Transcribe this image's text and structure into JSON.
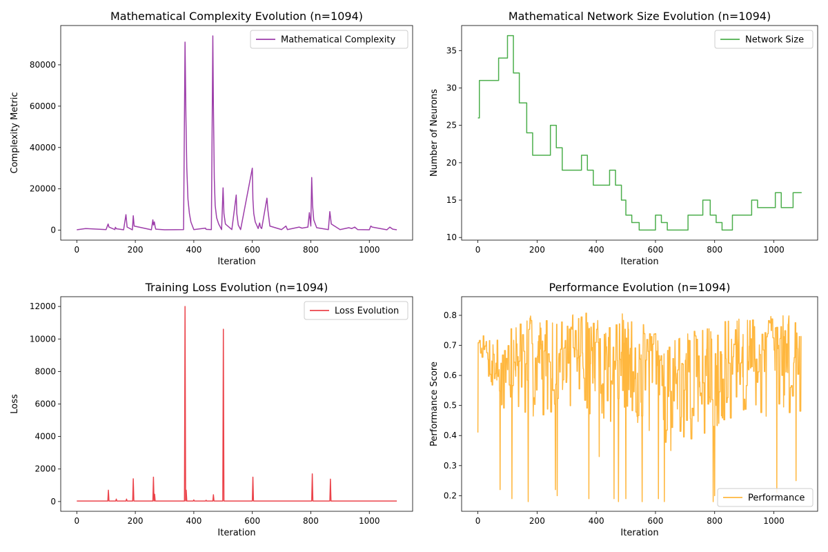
{
  "figure": {
    "background": "#ffffff"
  },
  "chart_data": [
    {
      "type": "line",
      "title": "Mathematical Complexity Evolution (n=1094)",
      "xlabel": "Iteration",
      "ylabel": "Complexity Metric",
      "xlim": [
        -55,
        1148
      ],
      "ylim": [
        -4800,
        99000
      ],
      "xticks": [
        0,
        200,
        400,
        600,
        800,
        1000
      ],
      "yticks": [
        0,
        20000,
        40000,
        60000,
        80000
      ],
      "legend": "top-right",
      "grid": false,
      "series": [
        {
          "name": "Mathematical Complexity",
          "color": "#8b1a9a",
          "x": [
            0,
            30,
            100,
            107,
            110,
            130,
            132,
            135,
            160,
            168,
            172,
            190,
            193,
            196,
            255,
            260,
            262,
            265,
            268,
            270,
            300,
            365,
            370,
            373,
            376,
            380,
            385,
            390,
            400,
            440,
            442,
            460,
            465,
            467,
            470,
            473,
            478,
            485,
            495,
            500,
            503,
            508,
            530,
            545,
            547,
            552,
            560,
            600,
            602,
            605,
            610,
            620,
            625,
            628,
            632,
            650,
            653,
            660,
            700,
            715,
            720,
            760,
            770,
            790,
            795,
            800,
            803,
            806,
            810,
            820,
            860,
            865,
            870,
            900,
            930,
            940,
            950,
            960,
            1000,
            1005,
            1010,
            1060,
            1070,
            1080,
            1094
          ],
          "values": [
            200,
            800,
            300,
            3000,
            1500,
            300,
            1400,
            700,
            200,
            7500,
            1500,
            200,
            7000,
            2000,
            200,
            5000,
            2500,
            4000,
            1500,
            500,
            200,
            300,
            91000,
            55000,
            30000,
            15000,
            8000,
            4000,
            300,
            1000,
            400,
            300,
            94000,
            60000,
            25000,
            12000,
            6000,
            3000,
            300,
            20500,
            8000,
            3000,
            300,
            17000,
            8000,
            2500,
            300,
            30000,
            15000,
            8000,
            4000,
            800,
            3500,
            1500,
            800,
            15500,
            10000,
            2000,
            300,
            2000,
            300,
            1500,
            1000,
            1500,
            8500,
            2000,
            25500,
            12000,
            5000,
            1200,
            300,
            9000,
            3000,
            300,
            1200,
            800,
            1500,
            300,
            200,
            2000,
            1500,
            200,
            1500,
            500,
            200
          ]
        }
      ]
    },
    {
      "type": "line",
      "title": "Mathematical Network Size Evolution (n=1094)",
      "xlabel": "Iteration",
      "ylabel": "Number of Neurons",
      "xlim": [
        -55,
        1148
      ],
      "ylim": [
        9.65,
        38.35
      ],
      "xticks": [
        0,
        200,
        400,
        600,
        800,
        1000
      ],
      "yticks": [
        10,
        15,
        20,
        25,
        30,
        35
      ],
      "legend": "top-right",
      "grid": false,
      "series": [
        {
          "name": "Network Size",
          "color": "#2ca02c",
          "x": [
            0,
            5,
            5,
            70,
            70,
            100,
            100,
            120,
            120,
            140,
            140,
            165,
            165,
            185,
            185,
            245,
            245,
            265,
            265,
            285,
            285,
            350,
            350,
            370,
            370,
            390,
            390,
            445,
            445,
            465,
            465,
            485,
            485,
            500,
            500,
            520,
            520,
            545,
            545,
            600,
            600,
            620,
            620,
            640,
            640,
            710,
            710,
            760,
            760,
            785,
            785,
            805,
            805,
            825,
            825,
            860,
            860,
            925,
            925,
            945,
            945,
            1005,
            1005,
            1025,
            1025,
            1065,
            1065,
            1094
          ],
          "values": [
            26,
            26,
            31,
            31,
            34,
            34,
            37,
            37,
            32,
            32,
            28,
            28,
            24,
            24,
            21,
            21,
            25,
            25,
            22,
            22,
            19,
            19,
            21,
            21,
            19,
            19,
            17,
            17,
            19,
            19,
            17,
            17,
            15,
            15,
            13,
            13,
            12,
            12,
            11,
            11,
            13,
            13,
            12,
            12,
            11,
            11,
            13,
            13,
            15,
            15,
            13,
            13,
            12,
            12,
            11,
            11,
            13,
            13,
            15,
            15,
            14,
            14,
            16,
            16,
            14,
            14,
            16,
            16
          ]
        }
      ]
    },
    {
      "type": "line",
      "title": "Training Loss Evolution (n=1094)",
      "xlabel": "Iteration",
      "ylabel": "Loss",
      "xlim": [
        -55,
        1148
      ],
      "ylim": [
        -600,
        12600
      ],
      "xticks": [
        0,
        200,
        400,
        600,
        800,
        1000
      ],
      "yticks": [
        0,
        2000,
        4000,
        6000,
        8000,
        10000,
        12000
      ],
      "legend": "top-right",
      "grid": false,
      "series": [
        {
          "name": "Loss Evolution",
          "color": "#e8222a",
          "x": [
            0,
            106,
            108,
            110,
            133,
            135,
            137,
            168,
            170,
            172,
            191,
            193,
            195,
            260,
            262,
            264,
            266,
            268,
            270,
            368,
            370,
            372,
            374,
            376,
            398,
            400,
            402,
            440,
            442,
            444,
            465,
            467,
            469,
            499,
            501,
            503,
            600,
            602,
            604,
            803,
            805,
            807,
            865,
            867,
            869,
            1094
          ],
          "values": [
            30,
            30,
            700,
            30,
            30,
            150,
            30,
            30,
            150,
            30,
            30,
            1400,
            30,
            30,
            1500,
            30,
            450,
            30,
            30,
            30,
            12000,
            30,
            700,
            30,
            30,
            100,
            30,
            30,
            80,
            30,
            30,
            420,
            30,
            30,
            10600,
            30,
            30,
            1500,
            30,
            30,
            1700,
            30,
            30,
            1380,
            30,
            30
          ]
        }
      ]
    },
    {
      "type": "line",
      "title": "Performance Evolution (n=1094)",
      "xlabel": "Iteration",
      "ylabel": "Performance Score",
      "xlim": [
        -55,
        1148
      ],
      "ylim": [
        0.148,
        0.862
      ],
      "xticks": [
        0,
        200,
        400,
        600,
        800,
        1000
      ],
      "yticks": [
        0.2,
        0.3,
        0.4,
        0.5,
        0.6,
        0.7,
        0.8
      ],
      "legend": "bottom-right",
      "grid": false,
      "series": [
        {
          "name": "Performance",
          "color": "#ffaa1c",
          "n": 1094,
          "seed": 7,
          "spikes": [
            [
              0,
              0.41
            ],
            [
              75,
              0.22
            ],
            [
              115,
              0.19
            ],
            [
              170,
              0.18
            ],
            [
              262,
              0.22
            ],
            [
              268,
              0.2
            ],
            [
              375,
              0.19
            ],
            [
              410,
              0.33
            ],
            [
              460,
              0.19
            ],
            [
              475,
              0.18
            ],
            [
              500,
              0.19
            ],
            [
              555,
              0.18
            ],
            [
              610,
              0.19
            ],
            [
              630,
              0.18
            ],
            [
              652,
              0.35
            ],
            [
              795,
              0.18
            ],
            [
              800,
              0.2
            ],
            [
              1010,
              0.21
            ],
            [
              1075,
              0.25
            ]
          ],
          "envelope": {
            "upper": [
              [
                0,
                0.73
              ],
              [
                100,
                0.75
              ],
              [
                140,
                0.81
              ],
              [
                300,
                0.78
              ],
              [
                340,
                0.83
              ],
              [
                400,
                0.79
              ],
              [
                480,
                0.81
              ],
              [
                600,
                0.75
              ],
              [
                700,
                0.74
              ],
              [
                800,
                0.77
              ],
              [
                950,
                0.81
              ],
              [
                1094,
                0.81
              ]
            ],
            "lower": [
              [
                0,
                0.7
              ],
              [
                80,
                0.4
              ],
              [
                200,
                0.44
              ],
              [
                300,
                0.5
              ],
              [
                400,
                0.44
              ],
              [
                520,
                0.4
              ],
              [
                650,
                0.35
              ],
              [
                800,
                0.4
              ],
              [
                950,
                0.45
              ],
              [
                1094,
                0.47
              ]
            ]
          }
        }
      ]
    }
  ]
}
